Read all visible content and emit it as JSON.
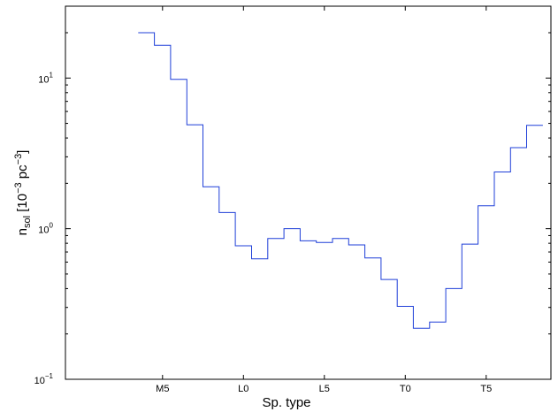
{
  "chart_data": {
    "type": "line",
    "step": true,
    "title": "",
    "xlabel": "Sp. type",
    "ylabel": {
      "base": "n",
      "sub": "sol",
      "rest": " [10",
      "sup1": "−3",
      "mid": " pc",
      "sup2": "−3",
      "end": "]"
    },
    "yscale": "log",
    "ylim": [
      0.1,
      30
    ],
    "xlim": [
      -6,
      24
    ],
    "grid": false,
    "line_color": "#1f3fd8",
    "x_ticks": [
      {
        "value": 0,
        "label": "M5"
      },
      {
        "value": 5,
        "label": "L0"
      },
      {
        "value": 10,
        "label": "L5"
      },
      {
        "value": 15,
        "label": "T0"
      },
      {
        "value": 20,
        "label": "T5"
      }
    ],
    "y_ticks": [
      {
        "value": 0.1,
        "base": "10",
        "exp": "−1"
      },
      {
        "value": 1,
        "base": "10",
        "exp": "0"
      },
      {
        "value": 10,
        "base": "10",
        "exp": "1"
      }
    ],
    "series": [
      {
        "x": [
          -1,
          0,
          1,
          2,
          3,
          4,
          5,
          6,
          7,
          8,
          9,
          10,
          11,
          12,
          13,
          14,
          15,
          16,
          17,
          18,
          19,
          20,
          21,
          22,
          23
        ],
        "y": [
          20,
          16.5,
          9.8,
          4.9,
          1.9,
          1.28,
          0.77,
          0.63,
          0.86,
          1.0,
          0.83,
          0.81,
          0.86,
          0.78,
          0.64,
          0.46,
          0.305,
          0.218,
          0.24,
          0.4,
          0.79,
          1.42,
          2.38,
          3.45,
          4.85
        ]
      }
    ]
  }
}
